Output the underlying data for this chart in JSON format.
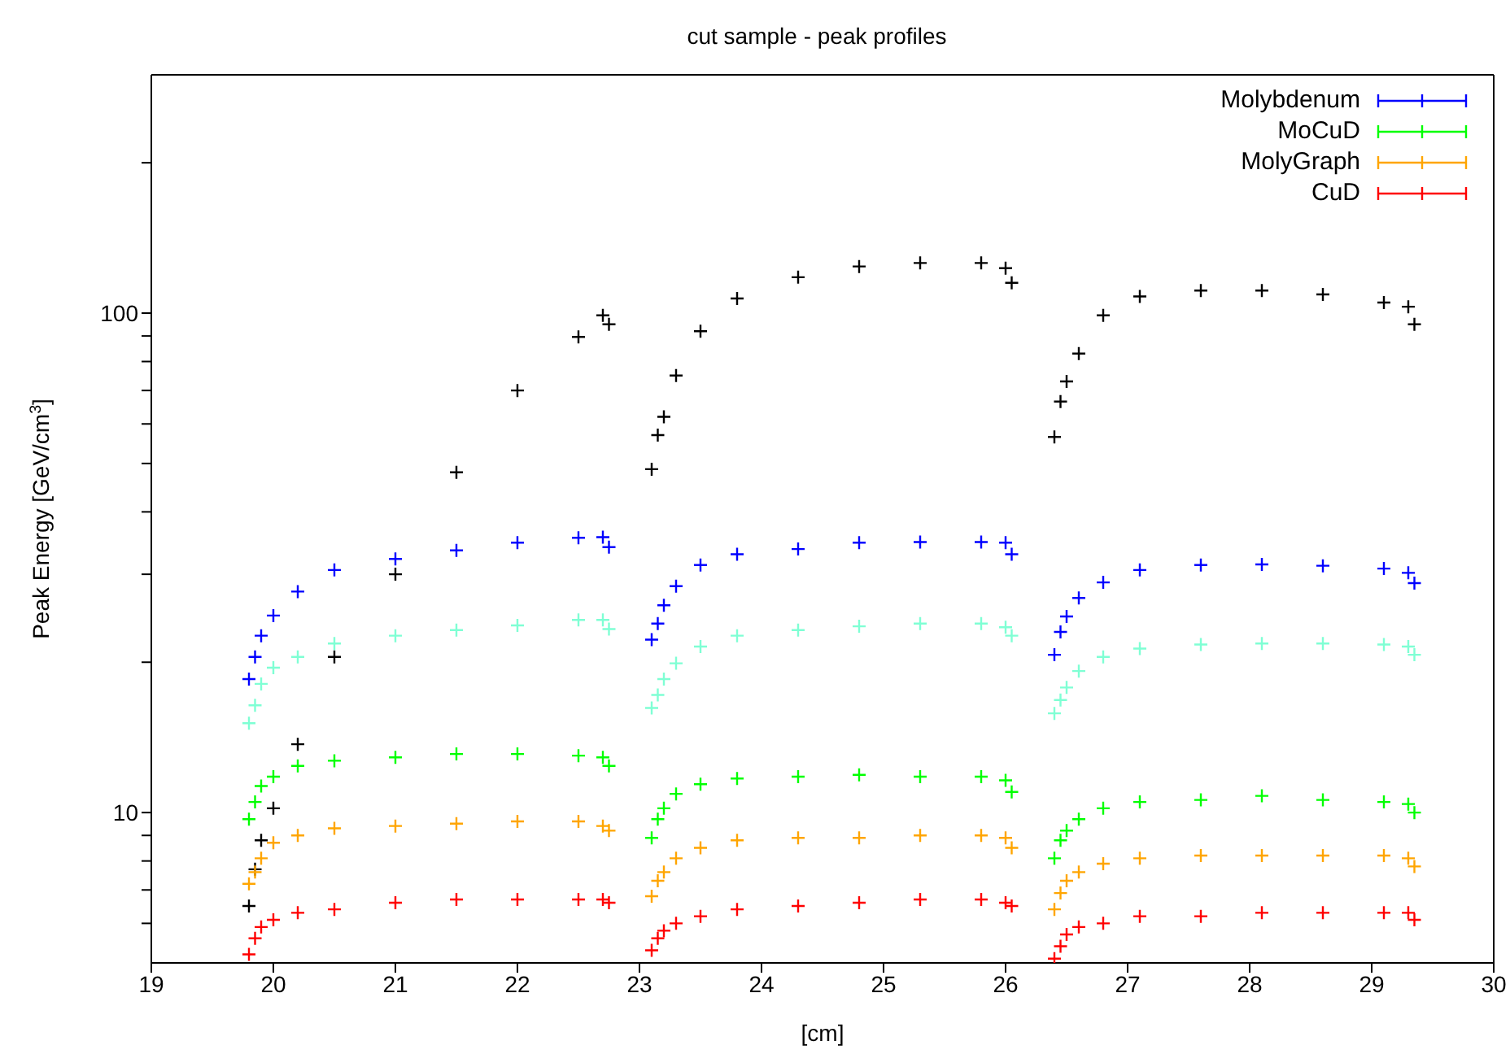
{
  "chart_data": {
    "type": "scatter",
    "title": "cut sample - peak profiles",
    "xlabel": "[cm]",
    "ylabel": "Peak Energy [GeV/cm$^{3}$]",
    "log": "y",
    "marker": "cross",
    "legend": "top right",
    "xlim": [
      19,
      30
    ],
    "xticks": [
      19,
      20,
      21,
      22,
      23,
      24,
      25,
      26,
      27,
      28,
      29,
      30
    ],
    "ylim": [
      5,
      300
    ],
    "yticks": [
      {
        "value": 6,
        "label": null
      },
      {
        "value": 7,
        "label": null
      },
      {
        "value": 8,
        "label": null
      },
      {
        "value": 9,
        "label": null
      },
      10,
      {
        "value": 20,
        "label": null
      },
      {
        "value": 30,
        "label": null
      },
      {
        "value": 40,
        "label": null
      },
      {
        "value": 50,
        "label": null
      },
      {
        "value": 60,
        "label": null
      },
      {
        "value": 70,
        "label": null
      },
      {
        "value": 80,
        "label": null
      },
      {
        "value": 90,
        "label": null
      },
      100,
      {
        "value": 200,
        "label": null
      }
    ],
    "x": [
      19.8,
      19.85,
      19.9,
      20.0,
      20.2,
      20.5,
      21.0,
      21.5,
      22.0,
      22.5,
      22.7,
      22.75,
      23.1,
      23.15,
      23.2,
      23.3,
      23.5,
      23.8,
      24.3,
      24.8,
      25.3,
      25.8,
      26.0,
      26.05,
      26.4,
      26.45,
      26.5,
      26.6,
      26.8,
      27.1,
      27.6,
      28.1,
      28.6,
      29.1,
      29.3,
      29.35
    ],
    "series": [
      {
        "color": "#000000",
        "values": [
          6.5,
          7.7,
          8.8,
          10.2,
          13.7,
          20.5,
          30,
          48,
          70,
          89.6,
          99,
          95,
          48.7,
          57,
          62,
          75,
          92,
          107,
          118,
          124,
          126,
          126,
          123,
          115,
          56.5,
          66.5,
          73,
          83,
          99,
          108,
          111,
          111,
          109,
          105,
          103,
          95
        ]
      },
      {
        "name": "Molybdenum",
        "color": "#0000ff",
        "values": [
          18.5,
          20.5,
          22.6,
          24.8,
          27.7,
          30.6,
          32.2,
          33.5,
          34.7,
          35.5,
          35.6,
          34,
          22.2,
          23.9,
          26,
          28.4,
          31.3,
          32.9,
          33.7,
          34.7,
          34.8,
          34.8,
          34.7,
          32.9,
          20.7,
          23,
          24.7,
          26.9,
          28.9,
          30.6,
          31.3,
          31.4,
          31.2,
          30.8,
          30.2,
          28.8
        ]
      },
      {
        "color": "#7fffd4",
        "values": [
          15.1,
          16.4,
          18.1,
          19.5,
          20.5,
          21.8,
          22.6,
          23.2,
          23.7,
          24.3,
          24.3,
          23.3,
          16.2,
          17.2,
          18.5,
          19.9,
          21.5,
          22.6,
          23.2,
          23.6,
          23.9,
          23.9,
          23.5,
          22.6,
          15.8,
          16.8,
          17.8,
          19.2,
          20.5,
          21.3,
          21.7,
          21.8,
          21.8,
          21.7,
          21.5,
          20.7
        ]
      },
      {
        "name": "MoCuD",
        "color": "#00ff00",
        "values": [
          9.7,
          10.5,
          11.3,
          11.8,
          12.4,
          12.7,
          12.9,
          13.1,
          13.1,
          13.0,
          12.9,
          12.4,
          8.9,
          9.7,
          10.2,
          10.9,
          11.4,
          11.7,
          11.8,
          11.9,
          11.8,
          11.8,
          11.6,
          11.0,
          8.1,
          8.8,
          9.2,
          9.7,
          10.2,
          10.5,
          10.6,
          10.8,
          10.6,
          10.5,
          10.4,
          10.0
        ]
      },
      {
        "name": "MolyGraph",
        "color": "#ffa500",
        "values": [
          7.2,
          7.6,
          8.1,
          8.7,
          9.0,
          9.3,
          9.4,
          9.5,
          9.6,
          9.6,
          9.4,
          9.2,
          6.8,
          7.3,
          7.6,
          8.1,
          8.5,
          8.8,
          8.9,
          8.9,
          9.0,
          9.0,
          8.9,
          8.5,
          6.4,
          6.9,
          7.3,
          7.6,
          7.9,
          8.1,
          8.2,
          8.2,
          8.2,
          8.2,
          8.1,
          7.8
        ]
      },
      {
        "name": "CuD",
        "color": "#ff0000",
        "values": [
          5.2,
          5.6,
          5.9,
          6.1,
          6.3,
          6.4,
          6.6,
          6.7,
          6.7,
          6.7,
          6.7,
          6.6,
          5.3,
          5.6,
          5.8,
          6.0,
          6.2,
          6.4,
          6.5,
          6.6,
          6.7,
          6.7,
          6.6,
          6.5,
          5.1,
          5.4,
          5.7,
          5.9,
          6.0,
          6.2,
          6.2,
          6.3,
          6.3,
          6.3,
          6.3,
          6.1
        ]
      }
    ]
  }
}
